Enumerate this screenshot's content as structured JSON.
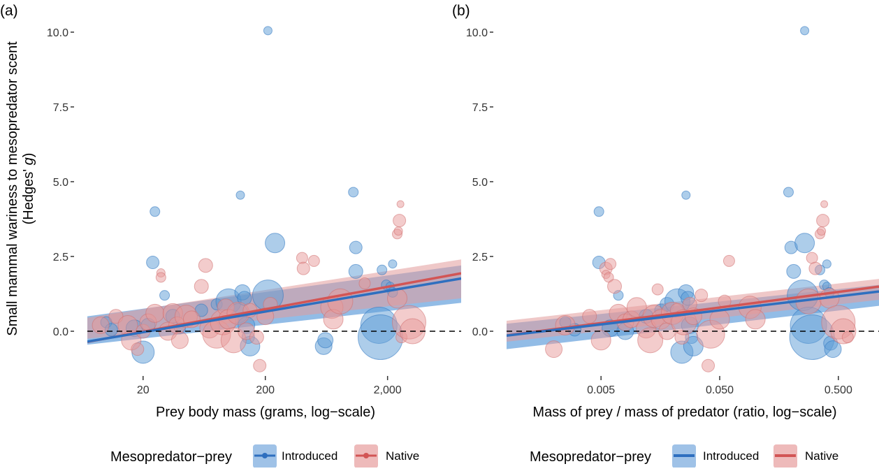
{
  "chart_data": [
    {
      "panel": "(a)",
      "type": "scatter",
      "xlabel": "Prey body mass (grams, log−scale)",
      "ylabel_line1": "Small mammal wariness to mesopredator scent",
      "ylabel_line2_prefix": "(Hedges' ",
      "ylabel_line2_italic": "g",
      "ylabel_line2_suffix": ")",
      "x_scale": "log10",
      "xlim": [
        7,
        8000
      ],
      "ylim": [
        -1.4,
        10.35
      ],
      "x_ticks": [
        {
          "value": 20,
          "label": "20"
        },
        {
          "value": 200,
          "label": "200"
        },
        {
          "value": 2000,
          "label": "2,000"
        }
      ],
      "y_ticks": [
        {
          "value": 0,
          "label": "0.0"
        },
        {
          "value": 2.5,
          "label": "2.5"
        },
        {
          "value": 5,
          "label": "5.0"
        },
        {
          "value": 7.5,
          "label": "7.5"
        },
        {
          "value": 10,
          "label": "10.0"
        }
      ],
      "reference_line_y": 0,
      "grid": false,
      "series": [
        {
          "name": "Introduced",
          "points": [
            [
              10,
              0.3,
              8
            ],
            [
              11,
              0.05,
              9
            ],
            [
              17,
              0.1,
              12
            ],
            [
              20,
              -0.7,
              16
            ],
            [
              25,
              4.0,
              7
            ],
            [
              24,
              2.3,
              9
            ],
            [
              30,
              1.2,
              7
            ],
            [
              22,
              0.2,
              10
            ],
            [
              35,
              0.5,
              10
            ],
            [
              40,
              0.1,
              8
            ],
            [
              60,
              0.7,
              9
            ],
            [
              80,
              0.9,
              8
            ],
            [
              100,
              1.0,
              18
            ],
            [
              120,
              0.6,
              14
            ],
            [
              130,
              1.3,
              11
            ],
            [
              135,
              1.1,
              10
            ],
            [
              140,
              0.2,
              12
            ],
            [
              145,
              -0.2,
              9
            ],
            [
              150,
              -0.5,
              14
            ],
            [
              125,
              4.55,
              6
            ],
            [
              210,
              1.2,
              22
            ],
            [
              240,
              2.95,
              14
            ],
            [
              600,
              -0.5,
              12
            ],
            [
              620,
              -0.3,
              11
            ],
            [
              1100,
              2.8,
              9
            ],
            [
              1050,
              4.65,
              7
            ],
            [
              1100,
              2.0,
              10
            ],
            [
              1700,
              0.2,
              26
            ],
            [
              1750,
              -0.2,
              32
            ],
            [
              1800,
              2.05,
              7
            ],
            [
              1950,
              1.55,
              7
            ],
            [
              2100,
              1.5,
              6
            ],
            [
              2200,
              2.25,
              6
            ],
            [
              2200,
              1.3,
              7
            ],
            [
              210,
              10.05,
              6
            ]
          ]
        },
        {
          "name": "Native",
          "points": [
            [
              9,
              0.2,
              12
            ],
            [
              12,
              0.5,
              10
            ],
            [
              15,
              0.2,
              14
            ],
            [
              16,
              -0.3,
              14
            ],
            [
              18,
              -0.6,
              9
            ],
            [
              20,
              0.0,
              10
            ],
            [
              22,
              0.3,
              12
            ],
            [
              25,
              0.6,
              13
            ],
            [
              28,
              1.95,
              6
            ],
            [
              28,
              1.8,
              7
            ],
            [
              32,
              0.0,
              13
            ],
            [
              35,
              0.6,
              14
            ],
            [
              38,
              0.2,
              12
            ],
            [
              40,
              -0.3,
              12
            ],
            [
              45,
              0.5,
              16
            ],
            [
              50,
              0.4,
              12
            ],
            [
              60,
              1.5,
              10
            ],
            [
              65,
              2.2,
              10
            ],
            [
              70,
              0.1,
              14
            ],
            [
              80,
              -0.1,
              20
            ],
            [
              90,
              0.3,
              18
            ],
            [
              95,
              0.8,
              12
            ],
            [
              100,
              0.4,
              14
            ],
            [
              110,
              -0.3,
              18
            ],
            [
              120,
              0.6,
              16
            ],
            [
              140,
              0.0,
              12
            ],
            [
              150,
              0.7,
              10
            ],
            [
              170,
              -0.2,
              10
            ],
            [
              180,
              -1.15,
              9
            ],
            [
              200,
              0.5,
              12
            ],
            [
              220,
              0.9,
              10
            ],
            [
              400,
              2.45,
              8
            ],
            [
              410,
              2.1,
              9
            ],
            [
              500,
              2.35,
              8
            ],
            [
              700,
              0.8,
              16
            ],
            [
              720,
              0.4,
              14
            ],
            [
              820,
              1.0,
              18
            ],
            [
              1300,
              1.6,
              8
            ],
            [
              2400,
              3.25,
              7
            ],
            [
              2450,
              3.35,
              6
            ],
            [
              2500,
              3.7,
              9
            ],
            [
              2550,
              4.25,
              5
            ],
            [
              2400,
              1.1,
              14
            ],
            [
              2600,
              -0.2,
              8
            ],
            [
              3000,
              0.3,
              24
            ],
            [
              3200,
              0.0,
              18
            ]
          ]
        }
      ],
      "trend": [
        {
          "series": "Introduced",
          "intercept": -0.93,
          "slope": 0.69,
          "ci_lower": [
            -0.45,
            0.95
          ],
          "ci_upper": [
            0.5,
            2.2
          ]
        },
        {
          "series": "Native",
          "intercept": -0.99,
          "slope": 0.75,
          "ci_lower": [
            -0.25,
            1.1
          ],
          "ci_upper": [
            0.45,
            2.4
          ]
        }
      ]
    },
    {
      "panel": "(b)",
      "type": "scatter",
      "xlabel": "Mass of prey / mass of predator (ratio, log−scale)",
      "x_scale": "log10",
      "xlim": [
        0.0008,
        1.1
      ],
      "ylim": [
        -1.4,
        10.35
      ],
      "x_ticks": [
        {
          "value": 0.005,
          "label": "0.005"
        },
        {
          "value": 0.05,
          "label": "0.050"
        },
        {
          "value": 0.5,
          "label": "0.500"
        }
      ],
      "y_ticks": [
        {
          "value": 0,
          "label": "0.0"
        },
        {
          "value": 2.5,
          "label": "2.5"
        },
        {
          "value": 5,
          "label": "5.0"
        },
        {
          "value": 7.5,
          "label": "7.5"
        },
        {
          "value": 10,
          "label": "10.0"
        }
      ],
      "reference_line_y": 0,
      "grid": false,
      "series": [
        {
          "name": "Introduced",
          "points": [
            [
              0.0025,
              0.3,
              8
            ],
            [
              0.003,
              0.05,
              9
            ],
            [
              0.0048,
              4.0,
              7
            ],
            [
              0.0048,
              2.3,
              9
            ],
            [
              0.006,
              0.1,
              12
            ],
            [
              0.007,
              1.2,
              7
            ],
            [
              0.008,
              0.0,
              12
            ],
            [
              0.012,
              0.5,
              10
            ],
            [
              0.016,
              0.7,
              9
            ],
            [
              0.018,
              0.9,
              10
            ],
            [
              0.022,
              1.0,
              18
            ],
            [
              0.024,
              -0.7,
              16
            ],
            [
              0.026,
              1.3,
              11
            ],
            [
              0.027,
              1.1,
              10
            ],
            [
              0.028,
              0.2,
              12
            ],
            [
              0.029,
              -0.2,
              9
            ],
            [
              0.03,
              -0.5,
              14
            ],
            [
              0.026,
              4.55,
              6
            ],
            [
              0.2,
              2.8,
              9
            ],
            [
              0.19,
              4.65,
              7
            ],
            [
              0.21,
              2.0,
              10
            ],
            [
              0.25,
              1.2,
              22
            ],
            [
              0.26,
              2.95,
              14
            ],
            [
              0.28,
              0.2,
              26
            ],
            [
              0.3,
              -0.2,
              32
            ],
            [
              0.35,
              2.05,
              7
            ],
            [
              0.38,
              1.55,
              7
            ],
            [
              0.4,
              1.5,
              6
            ],
            [
              0.4,
              2.25,
              6
            ],
            [
              0.42,
              1.3,
              7
            ],
            [
              0.43,
              -0.4,
              10
            ],
            [
              0.45,
              -0.6,
              12
            ],
            [
              0.26,
              10.05,
              6
            ]
          ]
        },
        {
          "name": "Native",
          "points": [
            [
              0.002,
              -0.6,
              12
            ],
            [
              0.0025,
              0.2,
              14
            ],
            [
              0.004,
              0.5,
              10
            ],
            [
              0.005,
              -0.3,
              14
            ],
            [
              0.0055,
              2.1,
              9
            ],
            [
              0.006,
              2.25,
              8
            ],
            [
              0.0055,
              1.9,
              6
            ],
            [
              0.0058,
              1.8,
              7
            ],
            [
              0.0065,
              1.5,
              10
            ],
            [
              0.007,
              0.6,
              13
            ],
            [
              0.008,
              0.3,
              12
            ],
            [
              0.009,
              0.4,
              12
            ],
            [
              0.01,
              0.8,
              14
            ],
            [
              0.012,
              0.1,
              14
            ],
            [
              0.013,
              -0.3,
              18
            ],
            [
              0.014,
              0.5,
              16
            ],
            [
              0.015,
              1.4,
              8
            ],
            [
              0.016,
              0.4,
              14
            ],
            [
              0.018,
              0.0,
              12
            ],
            [
              0.02,
              0.6,
              16
            ],
            [
              0.022,
              0.7,
              10
            ],
            [
              0.024,
              -0.2,
              10
            ],
            [
              0.025,
              0.3,
              18
            ],
            [
              0.028,
              0.9,
              10
            ],
            [
              0.03,
              0.5,
              12
            ],
            [
              0.035,
              1.2,
              9
            ],
            [
              0.04,
              -1.15,
              9
            ],
            [
              0.042,
              -0.1,
              20
            ],
            [
              0.05,
              0.4,
              14
            ],
            [
              0.055,
              1.0,
              9
            ],
            [
              0.06,
              2.35,
              8
            ],
            [
              0.09,
              0.8,
              16
            ],
            [
              0.1,
              0.4,
              14
            ],
            [
              0.28,
              1.0,
              18
            ],
            [
              0.3,
              2.45,
              8
            ],
            [
              0.32,
              2.1,
              9
            ],
            [
              0.35,
              3.25,
              7
            ],
            [
              0.36,
              3.35,
              6
            ],
            [
              0.37,
              3.7,
              9
            ],
            [
              0.38,
              4.25,
              5
            ],
            [
              0.42,
              1.1,
              14
            ],
            [
              0.5,
              0.3,
              24
            ],
            [
              0.55,
              0.0,
              18
            ],
            [
              0.6,
              -0.2,
              8
            ]
          ]
        }
      ],
      "trend": [
        {
          "series": "Introduced",
          "intercept": 1.31,
          "slope": 0.47,
          "ci_lower": [
            -0.6,
            0.85
          ],
          "ci_upper": [
            0.25,
            1.55
          ]
        },
        {
          "series": "Native",
          "intercept": 1.47,
          "slope": 0.52,
          "ci_lower": [
            -0.35,
            1.05
          ],
          "ci_upper": [
            0.35,
            1.75
          ]
        }
      ]
    }
  ],
  "legend": {
    "title": "Mesopredator−prey",
    "placement": "bottom",
    "entries": [
      {
        "name": "Introduced",
        "fill": "#9fc2e7",
        "line": "#2e6fbf"
      },
      {
        "name": "Native",
        "fill": "#eebaba",
        "line": "#d25555"
      }
    ]
  },
  "colors": {
    "introduced_point_fill": "#5b9bd5",
    "introduced_point_stroke": "#2e74c0",
    "introduced_band": "#4a8fd6",
    "introduced_line": "#2e6fbf",
    "native_point_fill": "#e89a9a",
    "native_point_stroke": "#cf6f6f",
    "native_band": "#e29a9a",
    "native_line": "#d25555",
    "zero_line": "#000000"
  }
}
